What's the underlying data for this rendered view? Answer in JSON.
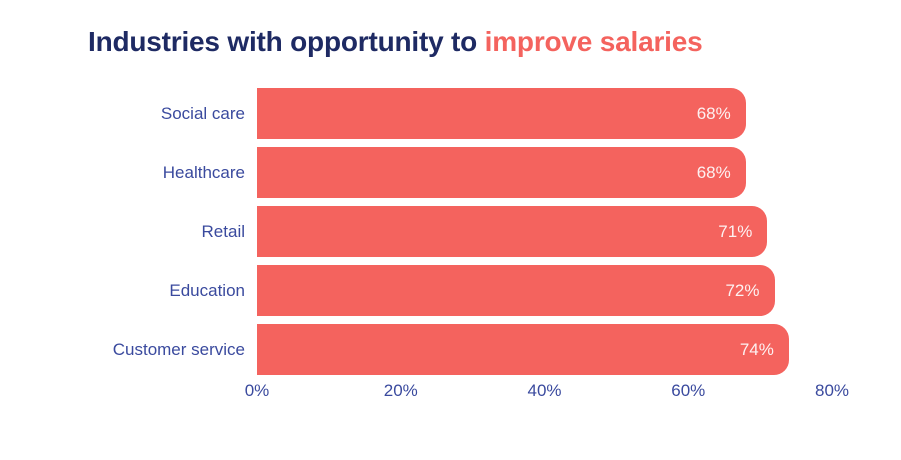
{
  "title": {
    "normal": "Industries with opportunity to ",
    "highlight": "improve salaries"
  },
  "colors": {
    "background": "#ffffff",
    "bar": "#f4635e",
    "title_navy": "#1e2a63",
    "label_blue": "#3a4a9e",
    "value_text": "#fdf1f1"
  },
  "chart_data": {
    "type": "bar",
    "orientation": "horizontal",
    "title": "Industries with opportunity to improve salaries",
    "categories": [
      "Social care",
      "Healthcare",
      "Retail",
      "Education",
      "Customer service"
    ],
    "values": [
      68,
      68,
      71,
      72,
      74
    ],
    "value_labels": [
      "68%",
      "68%",
      "71%",
      "72%",
      "74%"
    ],
    "xlabel": "",
    "ylabel": "",
    "xlim": [
      0,
      80
    ],
    "x_ticks": [
      "0%",
      "20%",
      "40%",
      "60%",
      "80%"
    ],
    "x_tick_values": [
      0,
      20,
      40,
      60,
      80
    ],
    "grid": false,
    "legend": false
  }
}
